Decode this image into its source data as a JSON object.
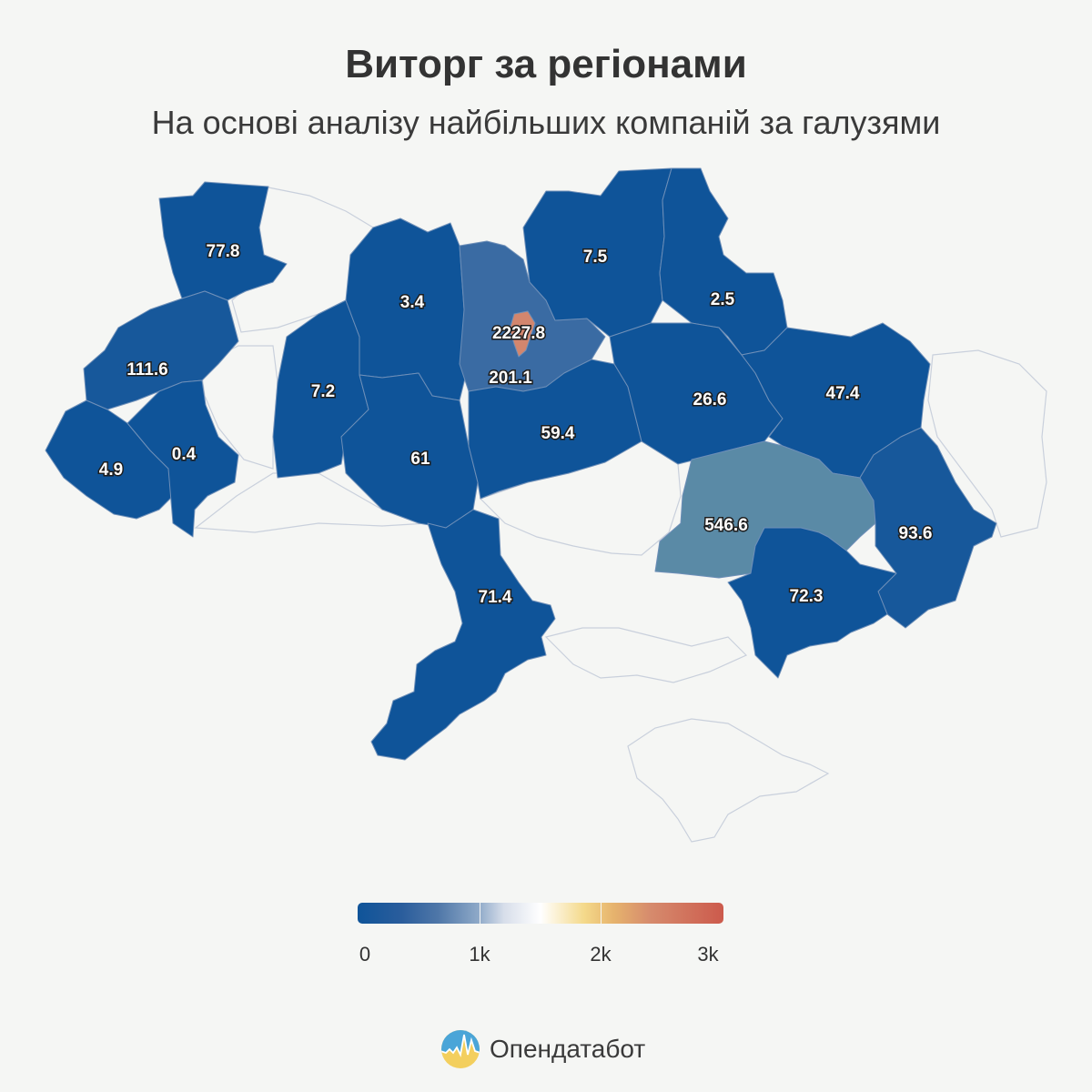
{
  "title": "Виторг за регіонами",
  "subtitle": "На основі аналізу найбільших компаній за галузями",
  "colors": {
    "low": "#0f5499",
    "mid": "#5a8aa6",
    "high": "#d2866e",
    "background": "#f5f6f4"
  },
  "chart_data": {
    "type": "choropleth",
    "regions": [
      {
        "label": "77.8",
        "value": 77.8
      },
      {
        "label": "111.6",
        "value": 111.6
      },
      {
        "label": "4.9",
        "value": 4.9
      },
      {
        "label": "0.4",
        "value": 0.4
      },
      {
        "label": "7.2",
        "value": 7.2
      },
      {
        "label": "3.4",
        "value": 3.4
      },
      {
        "label": "61",
        "value": 61
      },
      {
        "label": "2227.8",
        "value": 2227.8
      },
      {
        "label": "201.1",
        "value": 201.1
      },
      {
        "label": "59.4",
        "value": 59.4
      },
      {
        "label": "7.5",
        "value": 7.5
      },
      {
        "label": "2.5",
        "value": 2.5
      },
      {
        "label": "26.6",
        "value": 26.6
      },
      {
        "label": "47.4",
        "value": 47.4
      },
      {
        "label": "546.6",
        "value": 546.6
      },
      {
        "label": "93.6",
        "value": 93.6
      },
      {
        "label": "72.3",
        "value": 72.3
      },
      {
        "label": "71.4",
        "value": 71.4
      }
    ],
    "legend": {
      "min": 0,
      "max": 3000,
      "ticks": [
        "0",
        "1k",
        "2k",
        "3k"
      ]
    }
  },
  "brand": {
    "name": "Опендатабот"
  }
}
